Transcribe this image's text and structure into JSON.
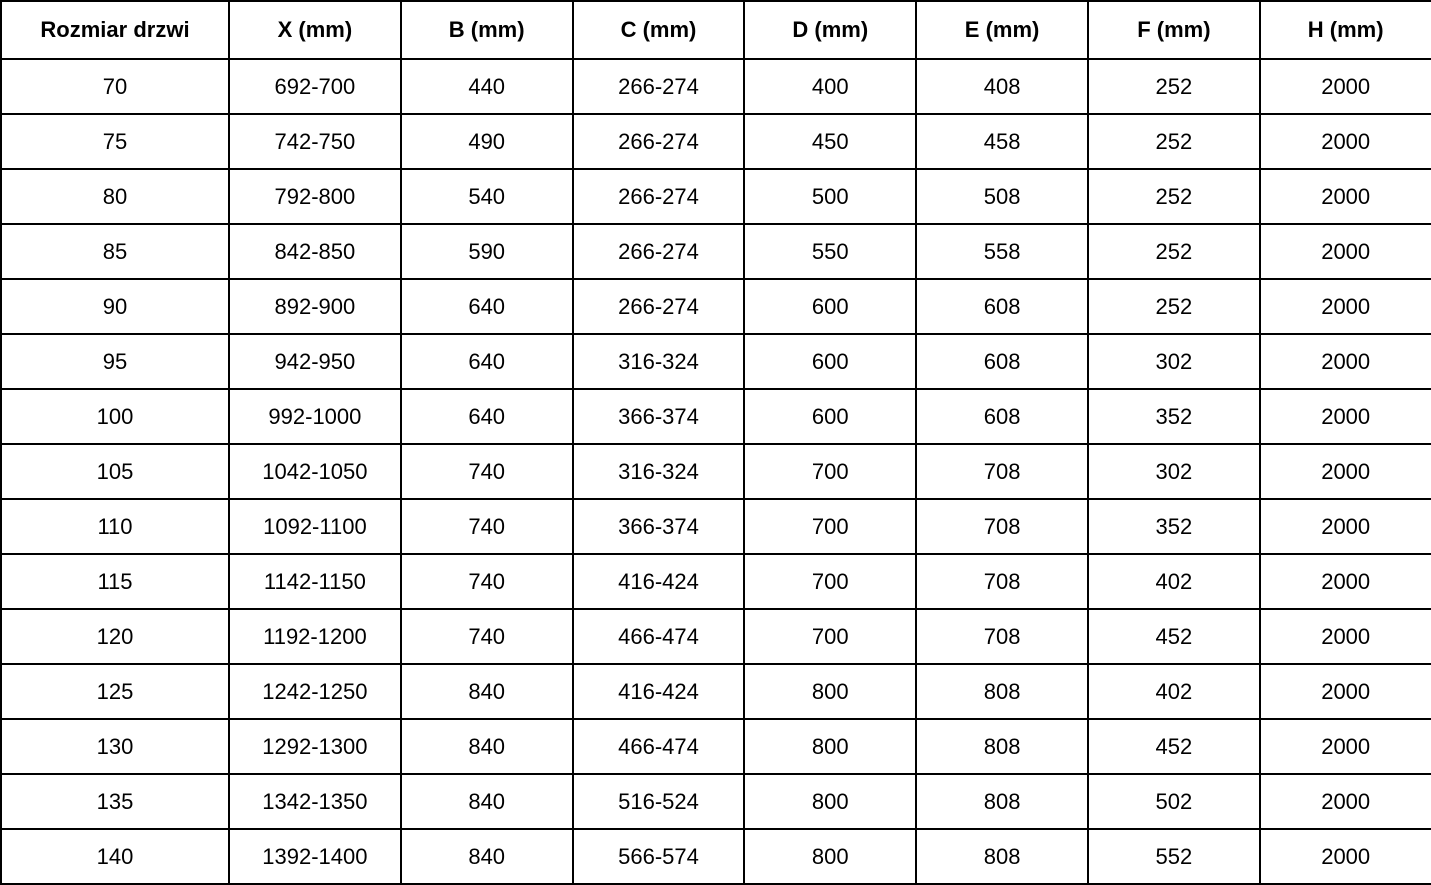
{
  "table": {
    "headers": [
      "Rozmiar drzwi",
      "X (mm)",
      "B (mm)",
      "C (mm)",
      "D (mm)",
      "E (mm)",
      "F (mm)",
      "H (mm)"
    ],
    "rows": [
      [
        "70",
        "692-700",
        "440",
        "266-274",
        "400",
        "408",
        "252",
        "2000"
      ],
      [
        "75",
        "742-750",
        "490",
        "266-274",
        "450",
        "458",
        "252",
        "2000"
      ],
      [
        "80",
        "792-800",
        "540",
        "266-274",
        "500",
        "508",
        "252",
        "2000"
      ],
      [
        "85",
        "842-850",
        "590",
        "266-274",
        "550",
        "558",
        "252",
        "2000"
      ],
      [
        "90",
        "892-900",
        "640",
        "266-274",
        "600",
        "608",
        "252",
        "2000"
      ],
      [
        "95",
        "942-950",
        "640",
        "316-324",
        "600",
        "608",
        "302",
        "2000"
      ],
      [
        "100",
        "992-1000",
        "640",
        "366-374",
        "600",
        "608",
        "352",
        "2000"
      ],
      [
        "105",
        "1042-1050",
        "740",
        "316-324",
        "700",
        "708",
        "302",
        "2000"
      ],
      [
        "110",
        "1092-1100",
        "740",
        "366-374",
        "700",
        "708",
        "352",
        "2000"
      ],
      [
        "115",
        "1142-1150",
        "740",
        "416-424",
        "700",
        "708",
        "402",
        "2000"
      ],
      [
        "120",
        "1192-1200",
        "740",
        "466-474",
        "700",
        "708",
        "452",
        "2000"
      ],
      [
        "125",
        "1242-1250",
        "840",
        "416-424",
        "800",
        "808",
        "402",
        "2000"
      ],
      [
        "130",
        "1292-1300",
        "840",
        "466-474",
        "800",
        "808",
        "452",
        "2000"
      ],
      [
        "135",
        "1342-1350",
        "840",
        "516-524",
        "800",
        "808",
        "502",
        "2000"
      ],
      [
        "140",
        "1392-1400",
        "840",
        "566-574",
        "800",
        "808",
        "552",
        "2000"
      ]
    ],
    "colors": {
      "border": "#000000",
      "text": "#000000",
      "background": "#ffffff"
    }
  }
}
